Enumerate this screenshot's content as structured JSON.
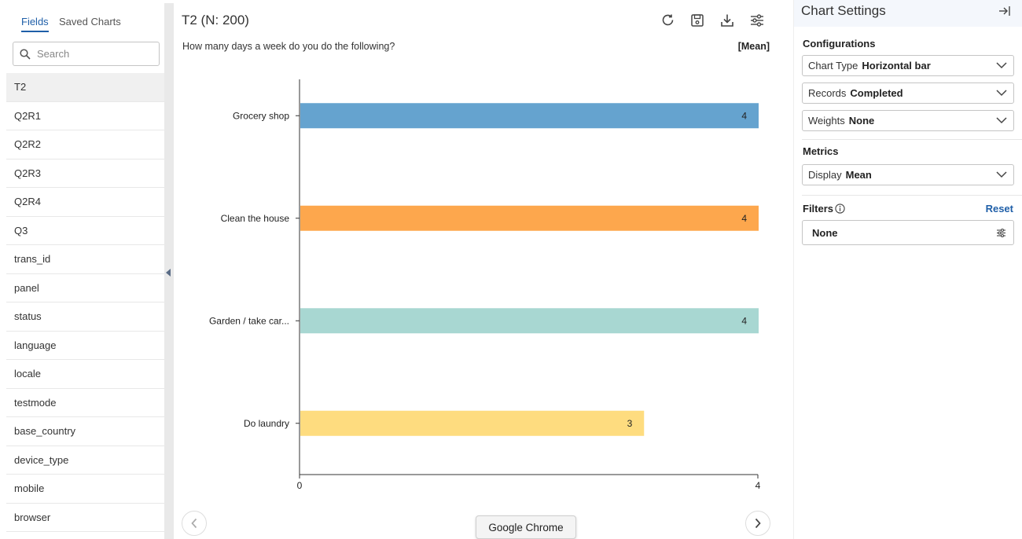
{
  "left": {
    "tabs": [
      {
        "label": "Fields"
      },
      {
        "label": "Saved Charts"
      }
    ],
    "search": {
      "placeholder": "Search",
      "icon": "search-icon"
    },
    "fields": [
      "T2",
      "Q2R1",
      "Q2R2",
      "Q2R3",
      "Q2R4",
      "Q3",
      "trans_id",
      "panel",
      "status",
      "language",
      "locale",
      "testmode",
      "base_country",
      "device_type",
      "mobile",
      "browser"
    ]
  },
  "center": {
    "title": "T2 (N: 200)",
    "question": "How many days a week do you do the following?",
    "metric_label": "[Mean]",
    "tooltip": "Google Chrome"
  },
  "chart_data": {
    "type": "bar",
    "orientation": "horizontal",
    "categories": [
      "Grocery shop",
      "Clean the house",
      "Garden / take car...",
      "Do laundry"
    ],
    "values": [
      4,
      4,
      4,
      3
    ],
    "data_labels": [
      "4",
      "4",
      "4",
      "3"
    ],
    "colors": [
      "#65a3cf",
      "#fda74d",
      "#a8d7d2",
      "#fedc7f"
    ],
    "xlim": [
      0,
      4
    ],
    "x_ticks": [
      "0",
      "4"
    ]
  },
  "right": {
    "title": "Chart Settings",
    "configurations_label": "Configurations",
    "chart_type": {
      "key": "Chart Type",
      "value": "Horizontal bar"
    },
    "records": {
      "key": "Records",
      "value": "Completed"
    },
    "weights": {
      "key": "Weights",
      "value": "None"
    },
    "metrics_label": "Metrics",
    "display": {
      "key": "Display",
      "value": "Mean"
    },
    "filters_label": "Filters",
    "reset_label": "Reset",
    "filter_value": "None"
  }
}
